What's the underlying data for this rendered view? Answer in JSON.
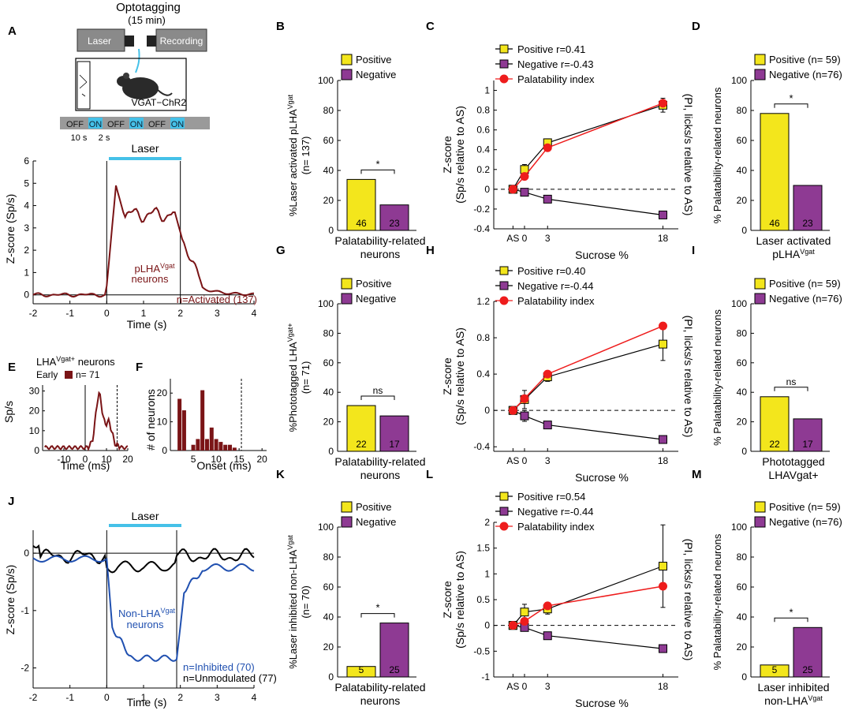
{
  "colors": {
    "positive": "#f3e61c",
    "negative": "#8e3a93",
    "palatability": "#ee1c1c",
    "trace_dark_red": "#7a1416",
    "trace_blue": "#2050b0",
    "laser_cyan": "#45c1e8",
    "axis": "#000000"
  },
  "panel_a": {
    "letter": "A",
    "opto_title": "Optotagging",
    "opto_duration": "(15 min)",
    "laser_box": "Laser",
    "recording_box": "Recording",
    "mouse_label": "VGAT−ChR2",
    "protocol": [
      "OFF",
      "ON",
      "OFF",
      "ON",
      "OFF",
      "ON"
    ],
    "off_duration": "10 s",
    "on_duration": "2 s",
    "laser_bar_label": "Laser",
    "ylabel": "Z-score (Sp/s)",
    "xlabel": "Time (s)",
    "yticks": [
      "0",
      "1",
      "2",
      "3",
      "4",
      "5",
      "6"
    ],
    "xticks": [
      "-2",
      "-1",
      "0",
      "1",
      "2",
      "3",
      "4"
    ],
    "trace_label_1": "pLHA",
    "trace_label_1_sup": "Vgat",
    "trace_label_2": "neurons",
    "n_label": "n=Activated (137)"
  },
  "panel_e": {
    "letter": "E",
    "title": "LHA",
    "title_sup": "Vgat+",
    "title_rest": " neurons",
    "legend_early": "Early",
    "legend_n": "n= 71",
    "ylabel": "Sp/s",
    "xlabel": "Time (ms)",
    "yticks": [
      "0",
      "10",
      "20",
      "30"
    ],
    "xticks": [
      "-10",
      "0",
      "10",
      "20"
    ]
  },
  "panel_f": {
    "letter": "F",
    "ylabel": "# of neurons",
    "xlabel": "Onset (ms)",
    "yticks": [
      "0",
      "10",
      "20"
    ],
    "xticks": [
      "5",
      "10",
      "15",
      "20"
    ]
  },
  "panel_j": {
    "letter": "J",
    "laser_bar_label": "Laser",
    "ylabel": "Z-score (Sp/s)",
    "xlabel": "Time (s)",
    "yticks": [
      "-2",
      "-1",
      "0"
    ],
    "xticks": [
      "-2",
      "-1",
      "0",
      "1",
      "2",
      "3",
      "4"
    ],
    "trace_label_1": "Non-LHA",
    "trace_label_1_sup": "Vgat",
    "trace_label_2": "neurons",
    "n_inhibited": "n=Inhibited (70)",
    "n_unmodulated": "n=Unmodulated (77)"
  },
  "chart_data": [
    {
      "panel": "B",
      "type": "bar",
      "legend": [
        "Positive",
        "Negative"
      ],
      "ylabel_main": "%Laser activated pLHA",
      "ylabel_sup": "Vgat",
      "ylabel_2": "(n= 137)",
      "xlabel_1": "Palatability-related",
      "xlabel_2": "neurons",
      "values": [
        34,
        17
      ],
      "counts": [
        "46",
        "23"
      ],
      "sig": "*",
      "ylim": [
        0,
        100
      ],
      "yticks": [
        "0",
        "20",
        "40",
        "60",
        "80",
        "100"
      ]
    },
    {
      "panel": "G",
      "type": "bar",
      "legend": [
        "Positive",
        "Negative"
      ],
      "ylabel_main": "%Phototagged LHA",
      "ylabel_sup": "Vgat+",
      "ylabel_2": "(n= 71)",
      "xlabel_1": "Palatability-related",
      "xlabel_2": "neurons",
      "values": [
        31,
        24
      ],
      "counts": [
        "22",
        "17"
      ],
      "sig": "ns",
      "ylim": [
        0,
        100
      ],
      "yticks": [
        "0",
        "20",
        "40",
        "60",
        "80",
        "100"
      ]
    },
    {
      "panel": "K",
      "type": "bar",
      "legend": [
        "Positive",
        "Negative"
      ],
      "ylabel_main": "%Laser inhibited non-LHA",
      "ylabel_sup": "Vgat",
      "ylabel_2": "(n= 70)",
      "xlabel_1": "Palatability-related",
      "xlabel_2": "neurons",
      "values": [
        7,
        36
      ],
      "counts": [
        "5",
        "25"
      ],
      "sig": "*",
      "ylim": [
        0,
        100
      ],
      "yticks": [
        "0",
        "20",
        "40",
        "60",
        "80",
        "100"
      ]
    },
    {
      "panel": "D",
      "type": "bar",
      "legend": [
        "Positive (n= 59)",
        "Negative (n=76)"
      ],
      "ylabel": "% Palatability-related neurons",
      "xlabel_1": "Laser activated",
      "xlabel_2": "pLHA",
      "xlabel_sup": "Vgat",
      "values": [
        78,
        30
      ],
      "counts": [
        "46",
        "23"
      ],
      "sig": "*",
      "ylim": [
        0,
        100
      ],
      "yticks": [
        "0",
        "20",
        "40",
        "60",
        "80",
        "100"
      ]
    },
    {
      "panel": "I",
      "type": "bar",
      "legend": [
        "Positive (n= 59)",
        "Negative (n=76)"
      ],
      "ylabel": "% Palatability-related neurons",
      "xlabel_1": "Phototagged",
      "xlabel_2": "LHAVgat+",
      "xlabel_sup": "",
      "values": [
        37,
        22
      ],
      "counts": [
        "22",
        "17"
      ],
      "sig": "ns",
      "ylim": [
        0,
        100
      ],
      "yticks": [
        "0",
        "20",
        "40",
        "60",
        "80",
        "100"
      ]
    },
    {
      "panel": "M",
      "type": "bar",
      "legend": [
        "Positive (n= 59)",
        "Negative (n=76)"
      ],
      "ylabel": "% Palatability-related neurons",
      "xlabel_1": "Laser inhibited",
      "xlabel_2": "non-LHA",
      "xlabel_sup": "Vgat",
      "values": [
        8,
        33
      ],
      "counts": [
        "5",
        "25"
      ],
      "sig": "*",
      "ylim": [
        0,
        100
      ],
      "yticks": [
        "0",
        "20",
        "40",
        "60",
        "80",
        "100"
      ]
    },
    {
      "panel": "C",
      "type": "line",
      "x": [
        "AS",
        "0",
        "3",
        "18"
      ],
      "xnum": [
        -1.5,
        0,
        3,
        18
      ],
      "ylim": [
        -0.4,
        1.1
      ],
      "yticks": [
        -0.4,
        -0.2,
        0,
        0.2,
        0.4,
        0.6,
        0.8,
        1
      ],
      "ytick_labels": [
        "-0.4",
        "-0.2",
        "0",
        "0.2",
        "0.4",
        "0.6",
        "0.8",
        "1"
      ],
      "ylabel": "Z-score",
      "ylabel_2": "(Sp/s relative to AS)",
      "ylabel_right": "(PI, licks/s relative to AS)",
      "xlabel": "Sucrose %",
      "series": [
        {
          "name": "Positive r=0.41",
          "kind": "positive",
          "values": [
            0,
            0.2,
            0.47,
            0.85
          ],
          "err": [
            0.02,
            0.05,
            0.04,
            0.07
          ]
        },
        {
          "name": "Negative r=-0.43",
          "kind": "negative",
          "values": [
            0,
            -0.03,
            -0.1,
            -0.26
          ],
          "err": [
            0.02,
            0.03,
            0.03,
            0.03
          ]
        },
        {
          "name": "Palatability index",
          "kind": "palatability",
          "values": [
            0,
            0.13,
            0.42,
            0.87
          ],
          "err": [
            0,
            0,
            0,
            0
          ]
        }
      ]
    },
    {
      "panel": "H",
      "type": "line",
      "x": [
        "AS",
        "0",
        "3",
        "18"
      ],
      "xnum": [
        -1.5,
        0,
        3,
        18
      ],
      "ylim": [
        -0.45,
        1.2
      ],
      "yticks": [
        -0.4,
        0,
        0.4,
        0.8,
        1.2
      ],
      "ytick_labels": [
        "-0.4",
        "0",
        "0.4",
        "0.8",
        "1.2"
      ],
      "ylabel": "Z-score",
      "ylabel_2": "(Sp/s relative to AS)",
      "ylabel_right": "(PI, licks/s relative to AS)",
      "xlabel": "Sucrose %",
      "series": [
        {
          "name": "Positive r=0.40",
          "kind": "positive",
          "values": [
            0,
            0.12,
            0.37,
            0.73
          ],
          "err": [
            0.02,
            0.1,
            0.05,
            0.18
          ]
        },
        {
          "name": "Negative r=-0.44",
          "kind": "negative",
          "values": [
            0,
            -0.06,
            -0.16,
            -0.32
          ],
          "err": [
            0.02,
            0.06,
            0.04,
            0.04
          ]
        },
        {
          "name": "Palatability index",
          "kind": "palatability",
          "values": [
            0,
            0.13,
            0.4,
            0.93
          ],
          "err": [
            0,
            0,
            0,
            0
          ]
        }
      ]
    },
    {
      "panel": "L",
      "type": "line",
      "x": [
        "AS",
        "0",
        "3",
        "18"
      ],
      "xnum": [
        -1.5,
        0,
        3,
        18
      ],
      "ylim": [
        -1,
        2
      ],
      "yticks": [
        -1,
        -0.5,
        0,
        0.5,
        1,
        1.5,
        2
      ],
      "ytick_labels": [
        "-1",
        "-0.5",
        "0",
        "0.5",
        "1",
        "1.5",
        "2"
      ],
      "ylabel": "Z-score",
      "ylabel_2": "(Sp/s relative to AS)",
      "ylabel_right": "(PI, licks/s relative to AS)",
      "xlabel": "Sucrose %",
      "series": [
        {
          "name": "Positive r=0.54",
          "kind": "positive",
          "values": [
            0,
            0.26,
            0.32,
            1.15
          ],
          "err": [
            0.02,
            0.15,
            0.1,
            0.8
          ]
        },
        {
          "name": "Negative r=-0.44",
          "kind": "negative",
          "values": [
            0,
            -0.04,
            -0.2,
            -0.45
          ],
          "err": [
            0.02,
            0.06,
            0.05,
            0.06
          ]
        },
        {
          "name": "Palatability index",
          "kind": "palatability",
          "values": [
            0,
            0.08,
            0.38,
            0.76
          ],
          "err": [
            0,
            0,
            0,
            0
          ]
        }
      ]
    }
  ]
}
